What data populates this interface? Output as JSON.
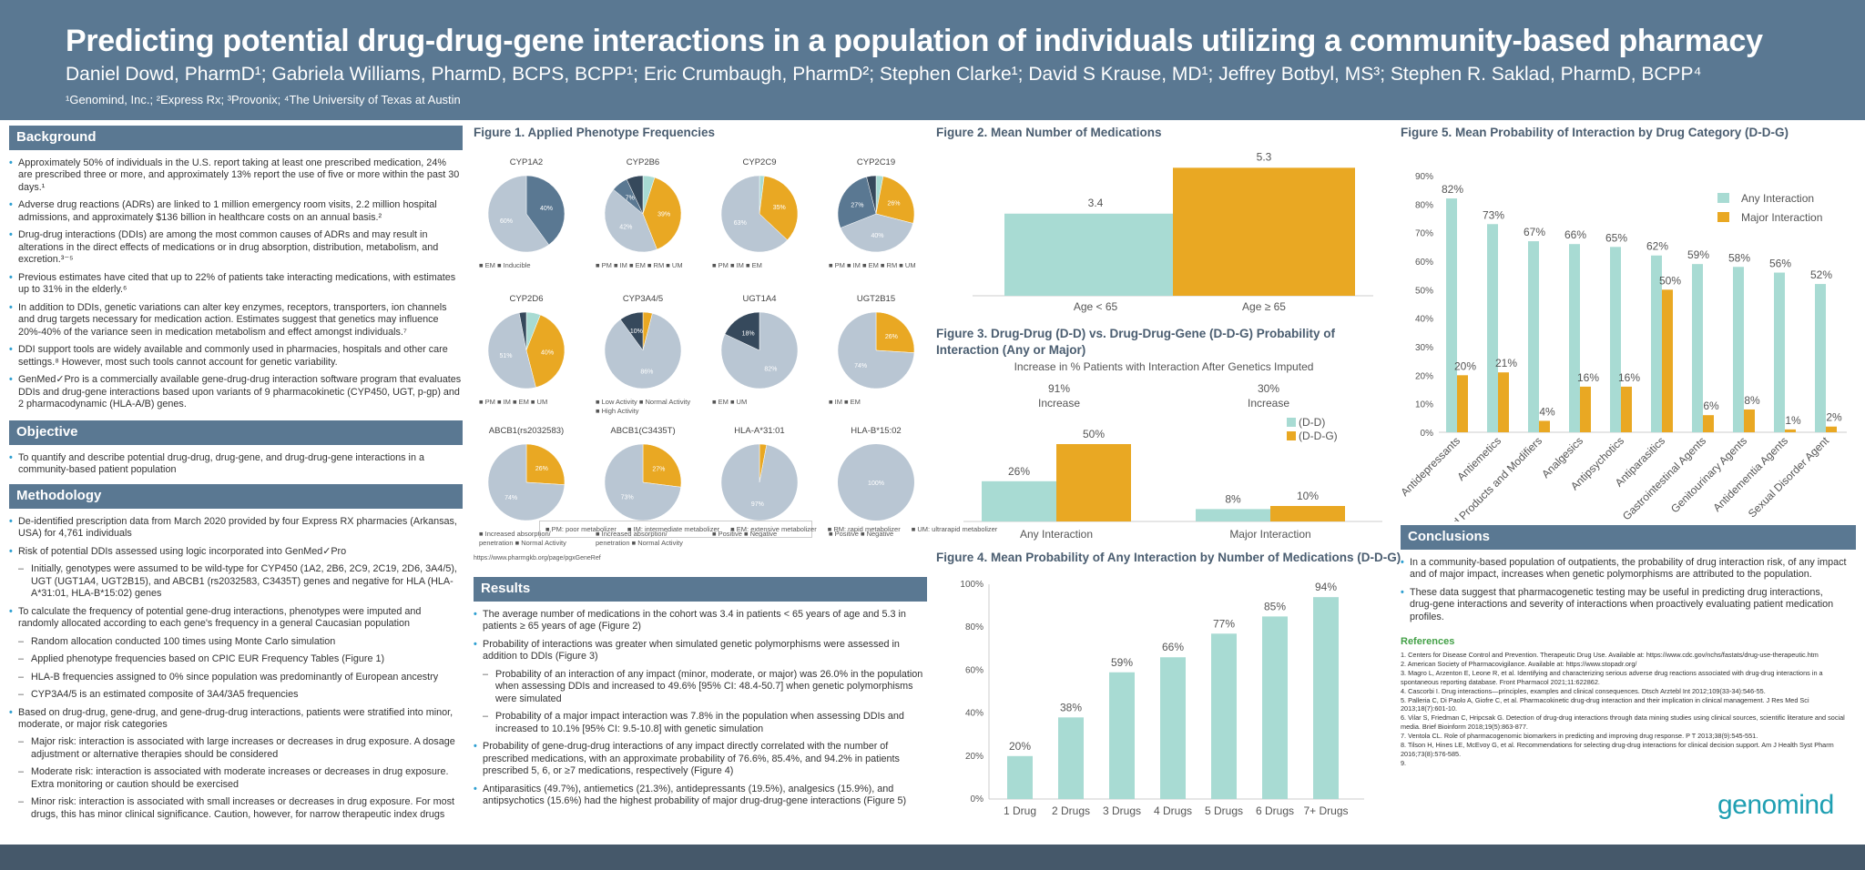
{
  "header": {
    "title": "Predicting potential drug-drug-gene interactions in a population of individuals utilizing a community-based pharmacy",
    "authors": "Daniel Dowd, PharmD¹; Gabriela Williams, PharmD, BCPS, BCPP¹; Eric Crumbaugh, PharmD²; Stephen Clarke¹; David S Krause, MD¹; Jeffrey Botbyl, MS³; Stephen R. Saklad, PharmD, BCPP⁴",
    "affiliations": "¹Genomind, Inc.;  ²Express Rx; ³Provonix; ⁴The University of Texas at Austin"
  },
  "colors": {
    "teal": "#a8dbd3",
    "orange": "#e9a823",
    "slate": "#5a7892",
    "grey": "#b9c6d3",
    "dark": "#36495c"
  },
  "background": {
    "heading": "Background",
    "items": [
      "Approximately 50% of individuals in the U.S. report taking at least one prescribed medication, 24% are prescribed three or more, and approximately 13% report the use of five or more within the past 30 days.¹",
      "Adverse drug reactions (ADRs) are linked to 1 million emergency room visits, 2.2 million hospital admissions, and approximately $136 billion in healthcare costs on an annual basis.²",
      "Drug-drug interactions (DDIs) are among the most common causes of ADRs and may result in alterations in the direct effects of medications or in drug absorption, distribution, metabolism, and excretion.³⁻⁵",
      "Previous estimates have cited that up to 22% of patients take interacting medications, with estimates up to 31% in the elderly.⁶",
      "In addition to DDIs, genetic variations can alter key enzymes, receptors, transporters, ion channels and drug targets necessary for medication action. Estimates suggest that genetics may influence 20%-40% of the variance seen in medication metabolism and effect amongst individuals.⁷",
      "DDI support tools are widely available and commonly used in pharmacies, hospitals and other care settings.⁸ However, most such tools cannot account for genetic variability.",
      "GenMed✓Pro is a commercially available gene-drug-drug interaction software program that evaluates DDIs and drug-gene interactions based upon variants of 9 pharmacokinetic (CYP450, UGT, p-gp) and 2 pharmacodynamic (HLA-A/B) genes."
    ]
  },
  "objective": {
    "heading": "Objective",
    "items": [
      "To quantify and describe potential drug-drug, drug-gene, and drug-drug-gene interactions in a community-based patient population"
    ]
  },
  "methodology": {
    "heading": "Methodology",
    "items": [
      {
        "t": "De-identified prescription data from March 2020 provided by four Express RX pharmacies (Arkansas, USA) for 4,761 individuals",
        "sub": false
      },
      {
        "t": "Risk of potential DDIs assessed using logic incorporated into GenMed✓Pro",
        "sub": false
      },
      {
        "t": "Initially, genotypes were assumed to be wild-type for CYP450 (1A2, 2B6, 2C9, 2C19, 2D6, 3A4/5), UGT (UGT1A4, UGT2B15), and ABCB1 (rs2032583, C3435T) genes and negative for HLA (HLA-A*31:01, HLA-B*15:02) genes",
        "sub": true
      },
      {
        "t": "To calculate the frequency of potential gene-drug interactions, phenotypes were imputed and randomly allocated according to each gene's frequency in a general Caucasian population",
        "sub": false
      },
      {
        "t": "Random allocation conducted 100 times using Monte Carlo simulation",
        "sub": true
      },
      {
        "t": "Applied phenotype frequencies based on CPIC EUR Frequency Tables (Figure 1)",
        "sub": true
      },
      {
        "t": "HLA-B frequencies assigned to 0% since population was predominantly of European ancestry",
        "sub": true
      },
      {
        "t": "CYP3A4/5 is an estimated composite of 3A4/3A5 frequencies",
        "sub": true
      },
      {
        "t": "Based on drug-drug, gene-drug, and gene-drug-drug interactions, patients were stratified into minor, moderate, or major risk categories",
        "sub": false
      },
      {
        "t": "Major risk: interaction is associated with large increases or decreases in drug exposure. A dosage adjustment or alternative therapies should be considered",
        "sub": true
      },
      {
        "t": "Moderate risk: interaction is associated with moderate increases or decreases in drug exposure. Extra monitoring or caution should be exercised",
        "sub": true
      },
      {
        "t": "Minor risk: interaction is associated with small increases or decreases in drug exposure. For most drugs, this has minor clinical significance. Caution, however, for narrow therapeutic index drugs",
        "sub": true
      }
    ]
  },
  "figure1": {
    "title": "Figure 1.  Applied Phenotype Frequencies",
    "source": "https://www.pharmgkb.org/page/pgxGeneRef",
    "pies": [
      {
        "name": "CYP1A2",
        "slices": [
          {
            "v": 40,
            "c": "#5a7892",
            "l": "40%"
          },
          {
            "v": 60,
            "c": "#b9c6d3",
            "l": "60%"
          }
        ],
        "legend": "■ EM  ■ Inducible"
      },
      {
        "name": "CYP2B6",
        "slices": [
          {
            "v": 5,
            "c": "#a8dbd3",
            "l": ""
          },
          {
            "v": 39,
            "c": "#e9a823",
            "l": "39%"
          },
          {
            "v": 42,
            "c": "#b9c6d3",
            "l": "42%"
          },
          {
            "v": 7,
            "c": "#5a7892",
            "l": "7%"
          },
          {
            "v": 7,
            "c": "#36495c",
            "l": ""
          }
        ],
        "legend": "■ PM  ■ IM  ■ EM  ■ RM  ■ UM"
      },
      {
        "name": "CYP2C9",
        "slices": [
          {
            "v": 2,
            "c": "#a8dbd3",
            "l": ""
          },
          {
            "v": 35,
            "c": "#e9a823",
            "l": "35%"
          },
          {
            "v": 63,
            "c": "#b9c6d3",
            "l": "63%"
          }
        ],
        "legend": "■ PM  ■ IM  ■ EM"
      },
      {
        "name": "CYP2C19",
        "slices": [
          {
            "v": 3,
            "c": "#a8dbd3",
            "l": ""
          },
          {
            "v": 26,
            "c": "#e9a823",
            "l": "26%"
          },
          {
            "v": 40,
            "c": "#b9c6d3",
            "l": "40%"
          },
          {
            "v": 27,
            "c": "#5a7892",
            "l": "27%"
          },
          {
            "v": 4,
            "c": "#36495c",
            "l": ""
          }
        ],
        "legend": "■ PM  ■ IM  ■ EM  ■ RM  ■ UM"
      },
      {
        "name": "CYP2D6",
        "slices": [
          {
            "v": 6,
            "c": "#a8dbd3",
            "l": ""
          },
          {
            "v": 40,
            "c": "#e9a823",
            "l": "40%"
          },
          {
            "v": 51,
            "c": "#b9c6d3",
            "l": "51%"
          },
          {
            "v": 3,
            "c": "#36495c",
            "l": ""
          }
        ],
        "legend": "■ PM  ■ IM  ■ EM  ■ UM"
      },
      {
        "name": "CYP3A4/5",
        "slices": [
          {
            "v": 4,
            "c": "#e9a823",
            "l": ""
          },
          {
            "v": 86,
            "c": "#b9c6d3",
            "l": "86%"
          },
          {
            "v": 10,
            "c": "#36495c",
            "l": "10%"
          }
        ],
        "legend": "■ Low Activity  ■ Normal Activity  ■ High Activity"
      },
      {
        "name": "UGT1A4",
        "slices": [
          {
            "v": 82,
            "c": "#b9c6d3",
            "l": "82%"
          },
          {
            "v": 18,
            "c": "#36495c",
            "l": "18%"
          }
        ],
        "legend": "■ EM  ■ UM"
      },
      {
        "name": "UGT2B15",
        "slices": [
          {
            "v": 26,
            "c": "#e9a823",
            "l": "26%"
          },
          {
            "v": 74,
            "c": "#b9c6d3",
            "l": "74%"
          }
        ],
        "legend": "■ IM  ■ EM"
      },
      {
        "name": "ABCB1(rs2032583)",
        "slices": [
          {
            "v": 26,
            "c": "#e9a823",
            "l": "26%"
          },
          {
            "v": 74,
            "c": "#b9c6d3",
            "l": "74%"
          }
        ],
        "legend": "■ Increased absorption/ penetration  ■ Normal Activity"
      },
      {
        "name": "ABCB1(C3435T)",
        "slices": [
          {
            "v": 27,
            "c": "#e9a823",
            "l": "27%"
          },
          {
            "v": 73,
            "c": "#b9c6d3",
            "l": "73%"
          }
        ],
        "legend": "■ Increased absorption/ penetration  ■ Normal Activity"
      },
      {
        "name": "HLA-A*31:01",
        "slices": [
          {
            "v": 3,
            "c": "#e9a823",
            "l": ""
          },
          {
            "v": 97,
            "c": "#b9c6d3",
            "l": "97%"
          }
        ],
        "legend": "■ Positive  ■ Negative"
      },
      {
        "name": "HLA-B*15:02",
        "slices": [
          {
            "v": 100,
            "c": "#b9c6d3",
            "l": "100%"
          }
        ],
        "legend": "■ Positive  ■ Negative"
      }
    ],
    "key": [
      "PM: poor metabolizer",
      "IM: intermediate metabolizer",
      "EM: extensive metabolizer",
      "RM: rapid metabolizer",
      "UM: ultrarapid metabolizer"
    ]
  },
  "results": {
    "heading": "Results",
    "items": [
      {
        "t": "The average number of medications in the cohort was 3.4 in patients < 65 years of age and 5.3 in patients ≥ 65 years of age (Figure 2)",
        "sub": false
      },
      {
        "t": "Probability of interactions was greater when simulated genetic polymorphisms were assessed in addition to DDIs (Figure 3)",
        "sub": false
      },
      {
        "t": "Probability of an interaction of any impact (minor, moderate, or major) was 26.0% in the population when assessing DDIs and increased to 49.6% [95% CI: 48.4-50.7] when genetic polymorphisms were simulated",
        "sub": true
      },
      {
        "t": "Probability of a major impact interaction was 7.8% in the population when assessing DDIs and increased to 10.1% [95% CI: 9.5-10.8] with genetic simulation",
        "sub": true
      },
      {
        "t": "Probability of gene-drug-drug interactions of any impact directly correlated with the number of prescribed medications, with an approximate probability of 76.6%, 85.4%, and 94.2% in patients prescribed 5, 6, or  ≥7 medications, respectively (Figure 4)",
        "sub": false
      },
      {
        "t": "Antiparasitics (49.7%), antiemetics (21.3%), antidepressants (19.5%), analgesics (15.9%), and antipsychotics (15.6%) had the highest probability of major drug-drug-gene interactions (Figure 5)",
        "sub": false
      }
    ]
  },
  "chart_data": [
    {
      "type": "bar",
      "title": "Figure 2.  Mean Number of Medications",
      "categories": [
        "Age < 65",
        "Age ≥ 65"
      ],
      "values": [
        3.4,
        5.3
      ],
      "labels": [
        "3.4",
        "5.3"
      ]
    },
    {
      "type": "bar",
      "title": "Figure 3.  Drug-Drug (D-D) vs. Drug-Drug-Gene (D-D-G) Probability of Interaction (Any or Major)",
      "subtitle": "Increase in % Patients with Interaction After Genetics Imputed",
      "increases": [
        {
          "v": "91%",
          "l": "Increase"
        },
        {
          "v": "30%",
          "l": "Increase"
        }
      ],
      "categories": [
        "Any Interaction",
        "Major Interaction"
      ],
      "series": [
        {
          "name": "(D-D)",
          "values": [
            26,
            8
          ],
          "labels": [
            "26%",
            "8%"
          ]
        },
        {
          "name": "(D-D-G)",
          "values": [
            50,
            10
          ],
          "labels": [
            "50%",
            "10%"
          ]
        }
      ]
    },
    {
      "type": "bar",
      "title": "Figure 4.  Mean Probability of Any Interaction by Number of Medications (D-D-G)",
      "categories": [
        "1 Drug",
        "2 Drugs",
        "3 Drugs",
        "4 Drugs",
        "5 Drugs",
        "6 Drugs",
        "7+ Drugs"
      ],
      "values": [
        20,
        38,
        59,
        66,
        77,
        85,
        94
      ],
      "labels": [
        "20%",
        "38%",
        "59%",
        "66%",
        "77%",
        "85%",
        "94%"
      ],
      "ylim": [
        0,
        100
      ],
      "yticks": [
        "0%",
        "20%",
        "40%",
        "60%",
        "80%",
        "100%"
      ]
    },
    {
      "type": "bar",
      "title": "Figure 5.  Mean Probability of Interaction by Drug Category (D-D-G)",
      "categories": [
        "Antidepressants",
        "Antiemetics",
        "Blood Products and Modifiers",
        "Analgesics",
        "Antipsychotics",
        "Antiparasitics",
        "Gastrointestinal Agents",
        "Genitourinary Agents",
        "Antidementia Agents",
        "Sexual Disorder Agent"
      ],
      "series": [
        {
          "name": "Any Interaction",
          "values": [
            82,
            73,
            67,
            66,
            65,
            62,
            59,
            58,
            56,
            52
          ],
          "labels": [
            "82%",
            "73%",
            "67%",
            "66%",
            "65%",
            "62%",
            "59%",
            "58%",
            "56%",
            "52%"
          ]
        },
        {
          "name": "Major Interaction",
          "values": [
            20,
            21,
            4,
            16,
            16,
            50,
            6,
            8,
            1,
            2
          ],
          "labels": [
            "20%",
            "21%",
            "4%",
            "16%",
            "16%",
            "50%",
            "6%",
            "8%",
            "1%",
            "2%"
          ]
        }
      ],
      "ylim": [
        0,
        90
      ],
      "yticks": [
        "0%",
        "10%",
        "20%",
        "30%",
        "40%",
        "50%",
        "60%",
        "70%",
        "80%",
        "90%"
      ]
    }
  ],
  "conclusions": {
    "heading": "Conclusions",
    "items": [
      "In a community-based population of outpatients, the probability of drug interaction risk, of any impact and of major impact, increases when genetic polymorphisms are attributed to the population.",
      "These data suggest that pharmacogenetic testing may be useful in predicting drug interactions, drug-gene interactions and severity of interactions when proactively evaluating patient medication profiles."
    ]
  },
  "references": {
    "heading": "References",
    "items": [
      "1. Centers for Disease Control and Prevention. Therapeutic Drug Use. Available at: https://www.cdc.gov/nchs/fastats/drug-use-therapeutic.htm",
      "2. American Society of Pharmacovigilance. Available at: https://www.stopadr.org/",
      "3. Magro L, Arzenton E, Leone R, et al. Identifying and characterizing serious adverse drug reactions associated with drug-drug interactions in a spontaneous reporting database. Front Pharmacol 2021;11:622862.",
      "4. Cascorbi I. Drug interactions—principles, examples and clinical consequences. Dtsch Arztebl Int 2012;109(33-34):546-55.",
      "5. Palleria C, Di Paolo A, Giofre C, et al. Pharmacokinetic drug-drug interaction and their implication in clinical management. J Res Med Sci 2013;18(7):601-10.",
      "6. Vilar S, Friedman C, Hripcsak G. Detection of drug-drug interactions through data mining studies using clinical sources, scientific literature and social media. Brief Bioinform 2018;19(5):863-877.",
      "7. Ventola CL. Role of pharmacogenomic biomarkers in predicting and improving drug response. P T 2013;38(9):545-551.",
      "8. Tilson H, Hines LE, McEvoy G, et al. Recommendations for selecting drug-drug interactions for clinical decision support. Am J Health Syst Pharm 2016;73(8):576-585.",
      "9."
    ]
  },
  "logo": "genomind"
}
